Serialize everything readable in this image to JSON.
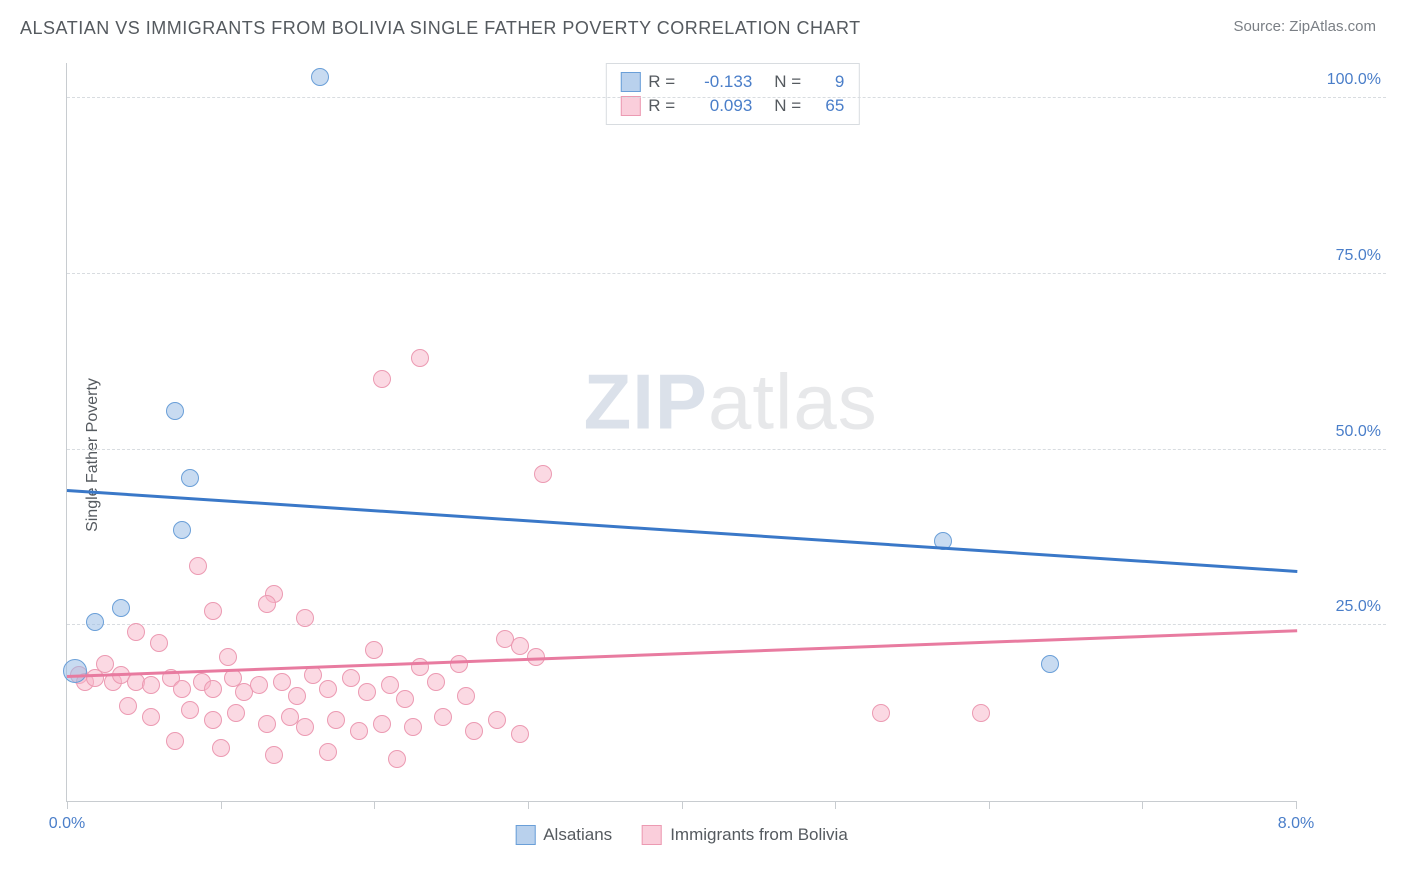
{
  "header": {
    "title": "ALSATIAN VS IMMIGRANTS FROM BOLIVIA SINGLE FATHER POVERTY CORRELATION CHART",
    "source": "Source: ZipAtlas.com"
  },
  "watermark": {
    "zip": "ZIP",
    "atlas": "atlas"
  },
  "chart": {
    "type": "scatter",
    "y_axis_label": "Single Father Poverty",
    "xlim": [
      0.0,
      8.0
    ],
    "ylim": [
      0.0,
      105.0
    ],
    "x_ticks": [
      0.0,
      1.0,
      2.0,
      3.0,
      4.0,
      5.0,
      6.0,
      7.0,
      8.0
    ],
    "x_tick_labels": {
      "0": "0.0%",
      "8": "8.0%"
    },
    "y_gridlines": [
      25.0,
      50.0,
      75.0,
      100.0
    ],
    "y_tick_labels": {
      "25": "25.0%",
      "50": "50.0%",
      "75": "75.0%",
      "100": "100.0%"
    },
    "background_color": "#ffffff",
    "grid_color": "#d8dce0",
    "axis_color": "#c8ccd0",
    "tick_label_color": "#4a7ec9",
    "marker_radius": 9,
    "cluster_marker_radius": 12,
    "series": {
      "blue": {
        "label": "Alsatians",
        "fill": "rgba(155,190,230,0.55)",
        "stroke": "#6a9fd8",
        "line_color": "#3a78c8",
        "trend": {
          "x0": 0.0,
          "y0": 44.5,
          "x1": 8.0,
          "y1": 33.0
        },
        "points": [
          {
            "x": 1.65,
            "y": 103.0
          },
          {
            "x": 0.7,
            "y": 55.5
          },
          {
            "x": 0.8,
            "y": 46.0
          },
          {
            "x": 0.75,
            "y": 38.5
          },
          {
            "x": 5.7,
            "y": 37.0
          },
          {
            "x": 0.35,
            "y": 27.5
          },
          {
            "x": 0.18,
            "y": 25.5
          },
          {
            "x": 6.4,
            "y": 19.5
          },
          {
            "x": 0.05,
            "y": 18.5,
            "r": 12
          }
        ]
      },
      "pink": {
        "label": "Immigrants from Bolivia",
        "fill": "rgba(248,180,200,0.5)",
        "stroke": "#ec9ab2",
        "line_color": "#e87ba0",
        "trend": {
          "x0": 0.0,
          "y0": 18.0,
          "x1": 8.0,
          "y1": 24.5
        },
        "points": [
          {
            "x": 2.3,
            "y": 63.0
          },
          {
            "x": 2.05,
            "y": 60.0
          },
          {
            "x": 3.1,
            "y": 46.5
          },
          {
            "x": 0.85,
            "y": 33.5
          },
          {
            "x": 1.35,
            "y": 29.5
          },
          {
            "x": 1.3,
            "y": 28.0
          },
          {
            "x": 0.95,
            "y": 27.0
          },
          {
            "x": 1.55,
            "y": 26.0
          },
          {
            "x": 0.45,
            "y": 24.0
          },
          {
            "x": 2.85,
            "y": 23.0
          },
          {
            "x": 2.95,
            "y": 22.0
          },
          {
            "x": 0.6,
            "y": 22.5
          },
          {
            "x": 2.0,
            "y": 21.5
          },
          {
            "x": 1.05,
            "y": 20.5
          },
          {
            "x": 2.55,
            "y": 19.5
          },
          {
            "x": 2.3,
            "y": 19.0
          },
          {
            "x": 3.05,
            "y": 20.5
          },
          {
            "x": 0.25,
            "y": 19.5
          },
          {
            "x": 0.08,
            "y": 18.0
          },
          {
            "x": 0.12,
            "y": 17.0
          },
          {
            "x": 0.18,
            "y": 17.5
          },
          {
            "x": 0.3,
            "y": 17.0
          },
          {
            "x": 0.35,
            "y": 18.0
          },
          {
            "x": 0.45,
            "y": 17.0
          },
          {
            "x": 0.55,
            "y": 16.5
          },
          {
            "x": 0.68,
            "y": 17.5
          },
          {
            "x": 0.75,
            "y": 16.0
          },
          {
            "x": 0.88,
            "y": 17.0
          },
          {
            "x": 0.95,
            "y": 16.0
          },
          {
            "x": 1.08,
            "y": 17.5
          },
          {
            "x": 1.15,
            "y": 15.5
          },
          {
            "x": 1.25,
            "y": 16.5
          },
          {
            "x": 1.4,
            "y": 17.0
          },
          {
            "x": 1.5,
            "y": 15.0
          },
          {
            "x": 1.6,
            "y": 18.0
          },
          {
            "x": 1.7,
            "y": 16.0
          },
          {
            "x": 1.85,
            "y": 17.5
          },
          {
            "x": 1.95,
            "y": 15.5
          },
          {
            "x": 2.1,
            "y": 16.5
          },
          {
            "x": 2.2,
            "y": 14.5
          },
          {
            "x": 2.4,
            "y": 17.0
          },
          {
            "x": 2.6,
            "y": 15.0
          },
          {
            "x": 0.4,
            "y": 13.5
          },
          {
            "x": 0.55,
            "y": 12.0
          },
          {
            "x": 0.8,
            "y": 13.0
          },
          {
            "x": 0.95,
            "y": 11.5
          },
          {
            "x": 1.1,
            "y": 12.5
          },
          {
            "x": 1.3,
            "y": 11.0
          },
          {
            "x": 1.45,
            "y": 12.0
          },
          {
            "x": 1.55,
            "y": 10.5
          },
          {
            "x": 1.75,
            "y": 11.5
          },
          {
            "x": 1.9,
            "y": 10.0
          },
          {
            "x": 2.05,
            "y": 11.0
          },
          {
            "x": 2.25,
            "y": 10.5
          },
          {
            "x": 2.45,
            "y": 12.0
          },
          {
            "x": 2.65,
            "y": 10.0
          },
          {
            "x": 2.8,
            "y": 11.5
          },
          {
            "x": 2.95,
            "y": 9.5
          },
          {
            "x": 0.7,
            "y": 8.5
          },
          {
            "x": 1.0,
            "y": 7.5
          },
          {
            "x": 1.35,
            "y": 6.5
          },
          {
            "x": 1.7,
            "y": 7.0
          },
          {
            "x": 2.15,
            "y": 6.0
          },
          {
            "x": 5.3,
            "y": 12.5
          },
          {
            "x": 5.95,
            "y": 12.5
          }
        ]
      }
    }
  },
  "legend_top": {
    "rows": [
      {
        "swatch": "blue",
        "r_label": "R =",
        "r": "-0.133",
        "n_label": "N =",
        "n": "9"
      },
      {
        "swatch": "pink",
        "r_label": "R =",
        "r": "0.093",
        "n_label": "N =",
        "n": "65"
      }
    ]
  },
  "legend_bottom": {
    "items": [
      {
        "swatch": "blue",
        "label": "Alsatians"
      },
      {
        "swatch": "pink",
        "label": "Immigrants from Bolivia"
      }
    ]
  }
}
